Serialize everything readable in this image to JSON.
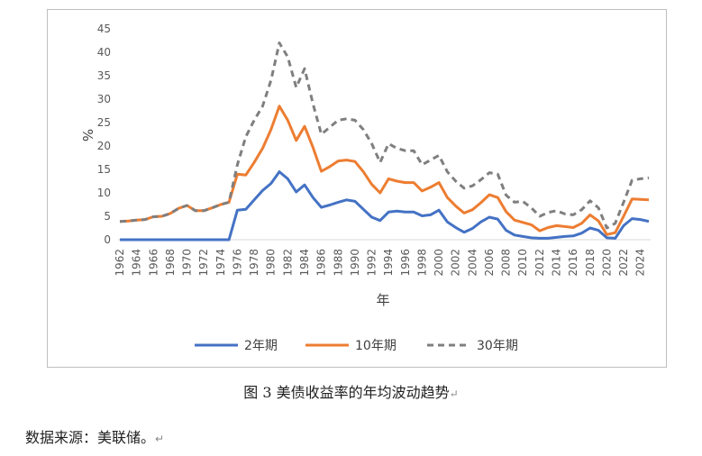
{
  "caption": "图 3  美债收益率的年均波动趋势",
  "source_note": "数据来源：美联储。",
  "chart_data": {
    "type": "line",
    "title": "",
    "xlabel": "年",
    "ylabel": "%",
    "ylim": [
      0,
      45
    ],
    "yticks": [
      0,
      5,
      10,
      15,
      20,
      25,
      30,
      35,
      40,
      45
    ],
    "grid": false,
    "legend": "bottom",
    "x": [
      1962,
      1963,
      1964,
      1965,
      1966,
      1967,
      1968,
      1969,
      1970,
      1971,
      1972,
      1973,
      1974,
      1975,
      1976,
      1977,
      1978,
      1979,
      1980,
      1981,
      1982,
      1983,
      1984,
      1985,
      1986,
      1987,
      1988,
      1989,
      1990,
      1991,
      1992,
      1993,
      1994,
      1995,
      1996,
      1997,
      1998,
      1999,
      2000,
      2001,
      2002,
      2003,
      2004,
      2005,
      2006,
      2007,
      2008,
      2009,
      2010,
      2011,
      2012,
      2013,
      2014,
      2015,
      2016,
      2017,
      2018,
      2019,
      2020,
      2021,
      2022,
      2023,
      2024,
      2025
    ],
    "xticks": [
      1962,
      1964,
      1966,
      1968,
      1970,
      1972,
      1974,
      1976,
      1978,
      1980,
      1982,
      1984,
      1986,
      1988,
      1990,
      1992,
      1994,
      1996,
      1998,
      2000,
      2002,
      2004,
      2006,
      2008,
      2010,
      2012,
      2014,
      2016,
      2018,
      2020,
      2022,
      2024
    ],
    "series": [
      {
        "name": "2年期",
        "color": "#4472c4",
        "style": "solid",
        "values": [
          0,
          0,
          0,
          0,
          0,
          0,
          0,
          0,
          0,
          0,
          0,
          0,
          0,
          0,
          6.3,
          6.5,
          8.5,
          10.5,
          12,
          14.5,
          13,
          10.2,
          11.7,
          9,
          6.9,
          7.4,
          8,
          8.5,
          8.2,
          6.5,
          4.8,
          4.1,
          5.9,
          6.1,
          5.9,
          5.9,
          5.1,
          5.3,
          6.3,
          3.8,
          2.6,
          1.6,
          2.4,
          3.8,
          4.8,
          4.4,
          2,
          1,
          0.7,
          0.4,
          0.3,
          0.3,
          0.5,
          0.7,
          0.8,
          1.4,
          2.5,
          2,
          0.4,
          0.3,
          3,
          4.5,
          4.3,
          3.9
        ]
      },
      {
        "name": "10年期",
        "color": "#ed7d31",
        "style": "solid",
        "values": [
          3.9,
          4,
          4.2,
          4.3,
          4.9,
          5,
          5.6,
          6.7,
          7.3,
          6.2,
          6.2,
          6.8,
          7.5,
          8,
          14,
          13.8,
          16.5,
          19.5,
          23.5,
          28.5,
          25.5,
          21.2,
          24.2,
          19.7,
          14.6,
          15.6,
          16.8,
          17,
          16.7,
          14.5,
          11.8,
          10,
          13,
          12.5,
          12.2,
          12.2,
          10.4,
          11.2,
          12.2,
          9,
          7.2,
          5.7,
          6.4,
          7.9,
          9.6,
          9,
          6,
          4.2,
          3.7,
          3.2,
          1.9,
          2.6,
          3,
          2.8,
          2.6,
          3.5,
          5.3,
          4,
          1.1,
          1.5,
          5,
          8.7,
          8.6,
          8.5
        ]
      },
      {
        "name": "30年期",
        "color": "#7f7f7f",
        "style": "dashed",
        "values": [
          3.9,
          4,
          4.2,
          4.3,
          4.9,
          5,
          5.6,
          6.7,
          7.3,
          6.2,
          6.2,
          6.8,
          7.5,
          8,
          16,
          22,
          25.5,
          28.5,
          34,
          42,
          39,
          32.5,
          36.5,
          29,
          22.5,
          24,
          25.5,
          25.8,
          25.5,
          23.5,
          20.5,
          16.5,
          20.5,
          19.5,
          19,
          19,
          16,
          17,
          18,
          14.5,
          12.5,
          11,
          11.5,
          12.8,
          14.3,
          14,
          9.5,
          8,
          8.2,
          6.8,
          5,
          5.8,
          6.2,
          5.5,
          5.3,
          6.4,
          8.3,
          6.8,
          2.5,
          3.5,
          8,
          12.7,
          13,
          13.2
        ]
      }
    ]
  }
}
